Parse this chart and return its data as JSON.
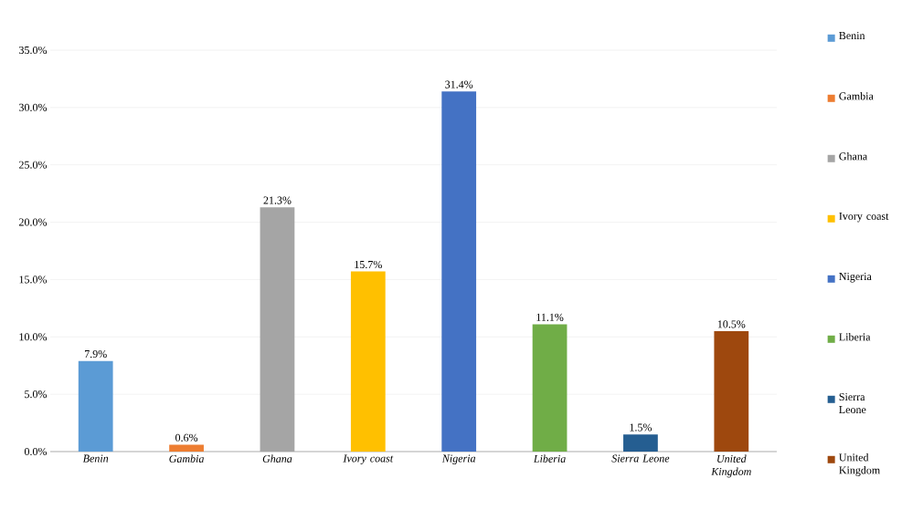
{
  "chart_data": {
    "type": "bar",
    "categories": [
      "Benin",
      "Gambia",
      "Ghana",
      "Ivory coast",
      "Nigeria",
      "Liberia",
      "Sierra Leone",
      "United Kingdom"
    ],
    "series": [
      {
        "name": "Benin",
        "color": "#5b9bd5",
        "values": [
          7.9,
          null,
          null,
          null,
          null,
          null,
          null,
          null
        ],
        "value_labels": [
          "7.9%",
          null,
          null,
          null,
          null,
          null,
          null,
          null
        ]
      },
      {
        "name": "Gambia",
        "color": "#ed7d31",
        "values": [
          null,
          0.6,
          null,
          null,
          null,
          null,
          null,
          null
        ],
        "value_labels": [
          null,
          "0.6%",
          null,
          null,
          null,
          null,
          null,
          null
        ]
      },
      {
        "name": "Ghana",
        "color": "#a5a5a5",
        "values": [
          null,
          null,
          21.3,
          null,
          null,
          null,
          null,
          null
        ],
        "value_labels": [
          null,
          null,
          "21.3%",
          null,
          null,
          null,
          null,
          null
        ]
      },
      {
        "name": "Ivory coast",
        "color": "#ffc000",
        "values": [
          null,
          null,
          null,
          15.7,
          null,
          null,
          null,
          null
        ],
        "value_labels": [
          null,
          null,
          null,
          "15.7%",
          null,
          null,
          null,
          null
        ]
      },
      {
        "name": "Nigeria",
        "color": "#4472c4",
        "values": [
          null,
          null,
          null,
          null,
          31.4,
          null,
          null,
          null
        ],
        "value_labels": [
          null,
          null,
          null,
          null,
          "31.4%",
          null,
          null,
          null
        ]
      },
      {
        "name": "Liberia",
        "color": "#70ad47",
        "values": [
          null,
          null,
          null,
          null,
          null,
          11.1,
          null,
          null
        ],
        "value_labels": [
          null,
          null,
          null,
          null,
          null,
          "11.1%",
          null,
          null
        ]
      },
      {
        "name": "Sierra Leone",
        "color": "#255e91",
        "values": [
          null,
          null,
          null,
          null,
          null,
          null,
          1.5,
          null
        ],
        "value_labels": [
          null,
          null,
          null,
          null,
          null,
          null,
          "1.5%",
          null
        ]
      },
      {
        "name": "United Kingdom",
        "color": "#9e480e",
        "values": [
          null,
          null,
          null,
          null,
          null,
          null,
          null,
          10.5
        ],
        "value_labels": [
          null,
          null,
          null,
          null,
          null,
          null,
          null,
          "10.5%"
        ]
      }
    ],
    "ylim": [
      0,
      35
    ],
    "yticks": [
      {
        "value": 0,
        "label": "0.0%"
      },
      {
        "value": 5,
        "label": "5.0%"
      },
      {
        "value": 10,
        "label": "10.0%"
      },
      {
        "value": 15,
        "label": "15.0%"
      },
      {
        "value": 20,
        "label": "20.0%"
      },
      {
        "value": 25,
        "label": "25.0%"
      },
      {
        "value": 30,
        "label": "30.0%"
      },
      {
        "value": 35,
        "label": "35.0%"
      }
    ],
    "grid": "y",
    "legend": "right"
  }
}
